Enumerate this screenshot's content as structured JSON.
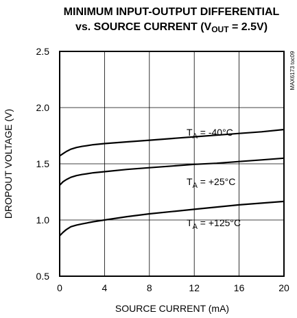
{
  "chart_data": {
    "type": "line",
    "title_line1": "MINIMUM INPUT-OUTPUT DIFFERENTIAL",
    "title_line2_prefix": "vs. SOURCE CURRENT (V",
    "title_line2_sub": "OUT",
    "title_line2_suffix": " = 2.5V)",
    "xlabel": "SOURCE CURRENT (mA)",
    "ylabel": "DROPOUT VOLTAGE (V)",
    "xlim": [
      0,
      20
    ],
    "ylim": [
      0.5,
      2.5
    ],
    "xticks": [
      "0",
      "4",
      "8",
      "12",
      "16",
      "20"
    ],
    "yticks": [
      "0.5",
      "1.0",
      "1.5",
      "2.0",
      "2.5"
    ],
    "grid": true,
    "figure_code": "MAX6173 toc09",
    "series": [
      {
        "label_prefix": "T",
        "label_sub": "A",
        "label_suffix": " = -40°C",
        "x": [
          0,
          0.3,
          0.6,
          1,
          1.5,
          2,
          3,
          4,
          6,
          8,
          10,
          12,
          14,
          16,
          18,
          20
        ],
        "y": [
          1.57,
          1.59,
          1.61,
          1.63,
          1.645,
          1.655,
          1.67,
          1.68,
          1.695,
          1.71,
          1.725,
          1.74,
          1.755,
          1.77,
          1.785,
          1.805
        ]
      },
      {
        "label_prefix": "T",
        "label_sub": "A",
        "label_suffix": " = +25°C",
        "x": [
          0,
          0.3,
          0.6,
          1,
          1.5,
          2,
          3,
          4,
          6,
          8,
          10,
          12,
          14,
          16,
          18,
          20
        ],
        "y": [
          1.31,
          1.34,
          1.36,
          1.38,
          1.395,
          1.405,
          1.42,
          1.43,
          1.45,
          1.465,
          1.48,
          1.495,
          1.505,
          1.52,
          1.535,
          1.55
        ]
      },
      {
        "label_prefix": "T",
        "label_sub": "A",
        "label_suffix": " = +125°C",
        "x": [
          0,
          0.3,
          0.6,
          1,
          1.5,
          2,
          3,
          4,
          6,
          8,
          10,
          12,
          14,
          16,
          18,
          20
        ],
        "y": [
          0.86,
          0.89,
          0.915,
          0.94,
          0.955,
          0.965,
          0.985,
          1.0,
          1.03,
          1.055,
          1.075,
          1.095,
          1.115,
          1.135,
          1.15,
          1.165
        ]
      }
    ]
  }
}
